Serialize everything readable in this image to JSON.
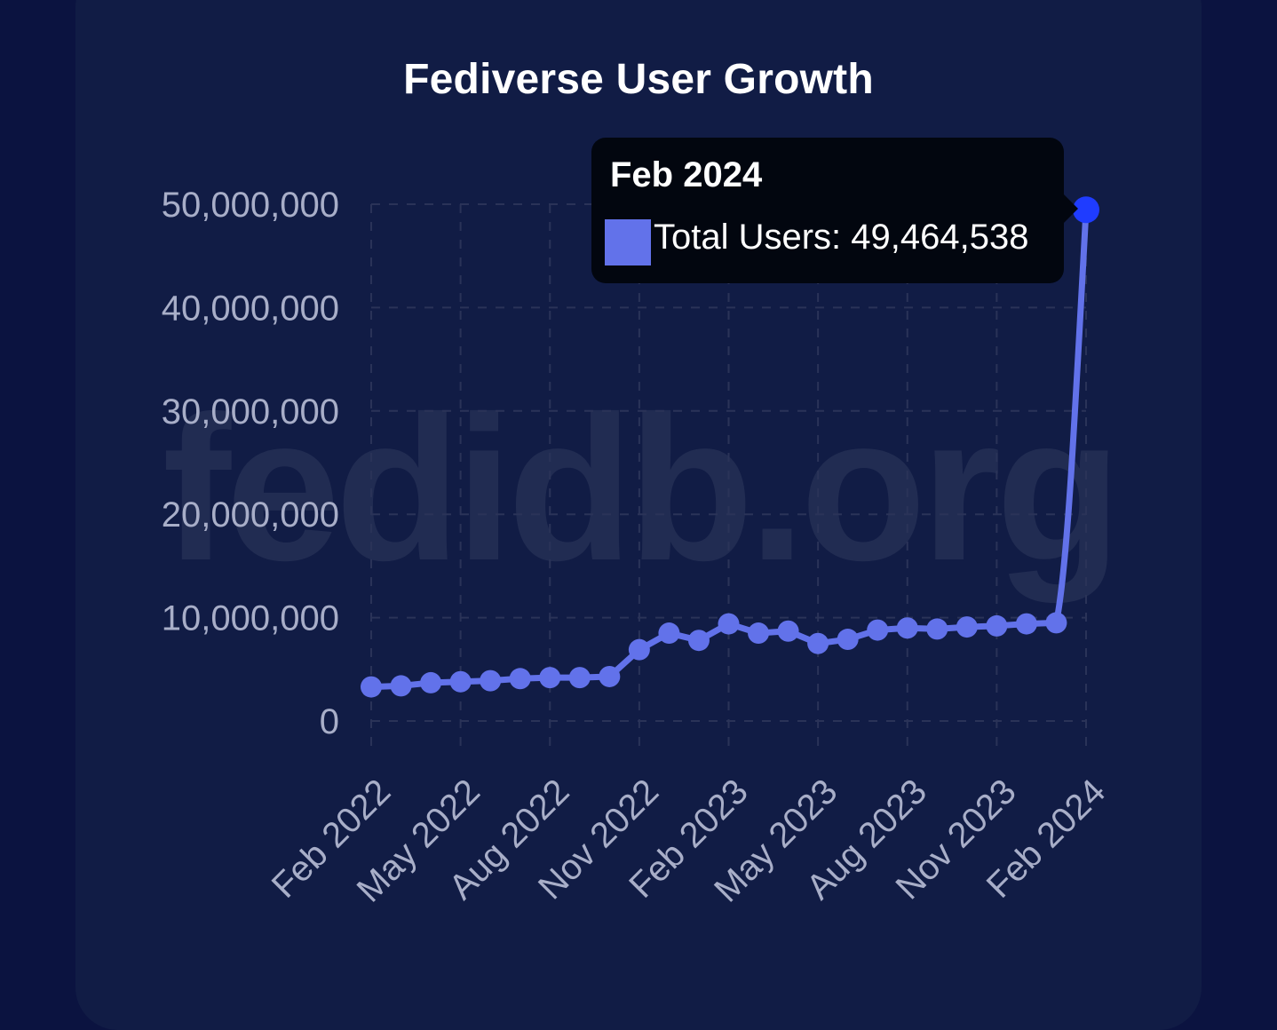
{
  "title": "Fediverse User Growth",
  "watermark": "fedidb.org",
  "tooltip": {
    "title": "Feb 2024",
    "label": "Total Users: 49,464,538",
    "swatch_color": "#6272ea"
  },
  "colors": {
    "line": "#6272ea",
    "active_point": "#1f3cff",
    "tick_text": "#a8aec8",
    "grid": "#2a3358"
  },
  "chart_data": {
    "type": "line",
    "title": "Fediverse User Growth",
    "xlabel": "",
    "ylabel": "",
    "ylim": [
      0,
      50000000
    ],
    "yticks": [
      "0",
      "10,000,000",
      "20,000,000",
      "30,000,000",
      "40,000,000",
      "50,000,000"
    ],
    "x_tick_labels": [
      "Feb 2022",
      "May 2022",
      "Aug 2022",
      "Nov 2022",
      "Feb 2023",
      "May 2023",
      "Aug 2023",
      "Nov 2023",
      "Feb 2024"
    ],
    "x": [
      "Feb 2022",
      "Mar 2022",
      "Apr 2022",
      "May 2022",
      "Jun 2022",
      "Jul 2022",
      "Aug 2022",
      "Sep 2022",
      "Oct 2022",
      "Nov 2022",
      "Dec 2022",
      "Jan 2023",
      "Feb 2023",
      "Mar 2023",
      "Apr 2023",
      "May 2023",
      "Jun 2023",
      "Jul 2023",
      "Aug 2023",
      "Sep 2023",
      "Oct 2023",
      "Nov 2023",
      "Dec 2023",
      "Jan 2024",
      "Feb 2024"
    ],
    "series": [
      {
        "name": "Total Users",
        "values": [
          3300000,
          3400000,
          3700000,
          3800000,
          3900000,
          4100000,
          4200000,
          4200000,
          4300000,
          6900000,
          8500000,
          7800000,
          9400000,
          8500000,
          8700000,
          7500000,
          7900000,
          8800000,
          9000000,
          8900000,
          9100000,
          9200000,
          9400000,
          9500000,
          49464538
        ]
      }
    ],
    "highlighted_point": {
      "x": "Feb 2024",
      "value": 49464538
    },
    "grid": true,
    "legend": "none"
  }
}
